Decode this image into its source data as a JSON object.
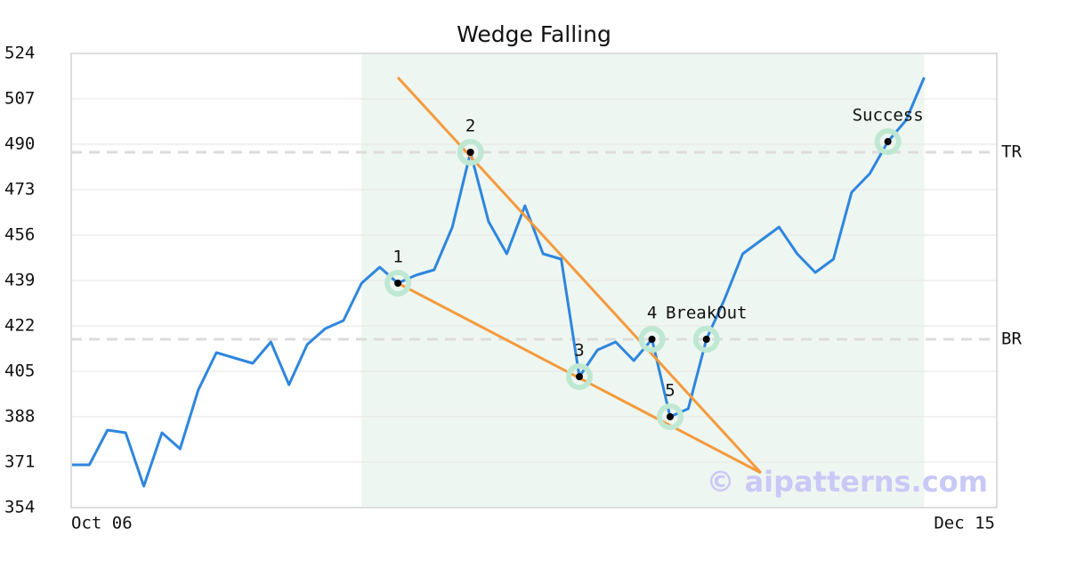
{
  "chart_data": {
    "type": "line",
    "title": "Wedge Falling",
    "categories": [
      "Oct 06",
      null,
      null,
      null,
      null,
      null,
      null,
      null,
      null,
      null,
      null,
      null,
      null,
      null,
      null,
      null,
      null,
      null,
      null,
      null,
      null,
      null,
      null,
      null,
      null,
      null,
      null,
      null,
      null,
      null,
      null,
      null,
      null,
      null,
      null,
      null,
      null,
      null,
      null,
      null,
      null,
      null,
      null,
      null,
      null,
      null,
      null,
      null,
      null,
      null,
      null,
      "Dec 15"
    ],
    "values": [
      370,
      370,
      383,
      382,
      362,
      382,
      376,
      398,
      412,
      410,
      408,
      416,
      400,
      415,
      421,
      424,
      438,
      444,
      438,
      441,
      443,
      459,
      487,
      461,
      449,
      467,
      449,
      447,
      403,
      413,
      416,
      409,
      417,
      388,
      391,
      417,
      432,
      449,
      454,
      459,
      449,
      442,
      447,
      472,
      479,
      491,
      499,
      515,
      null,
      null,
      null,
      null
    ],
    "color": "#2e86de",
    "ylim": [
      354,
      524
    ],
    "yticks": [
      354,
      371,
      388,
      405,
      422,
      439,
      456,
      473,
      490,
      507,
      524
    ],
    "grid": true,
    "levels": [
      {
        "value": 487,
        "label": "TR"
      },
      {
        "value": 417,
        "label": "BR"
      }
    ],
    "highlight": {
      "from": 16,
      "to": 47,
      "color": "#eef6f1"
    },
    "trend_lines": {
      "color": "#f59a3c",
      "lines": [
        {
          "x": [
            18,
            38
          ],
          "values": [
            515,
            367
          ]
        },
        {
          "x": [
            18,
            38
          ],
          "values": [
            438,
            367
          ]
        }
      ]
    },
    "points": [
      {
        "x": 18,
        "label": "1"
      },
      {
        "x": 22,
        "label": "2"
      },
      {
        "x": 28,
        "label": "3"
      },
      {
        "x": 32,
        "label": "4"
      },
      {
        "x": 33,
        "label": "5"
      },
      {
        "x": 35,
        "label": "BreakOut"
      },
      {
        "x": 45,
        "label": "Success"
      }
    ],
    "watermark": "© aipatterns.com"
  }
}
